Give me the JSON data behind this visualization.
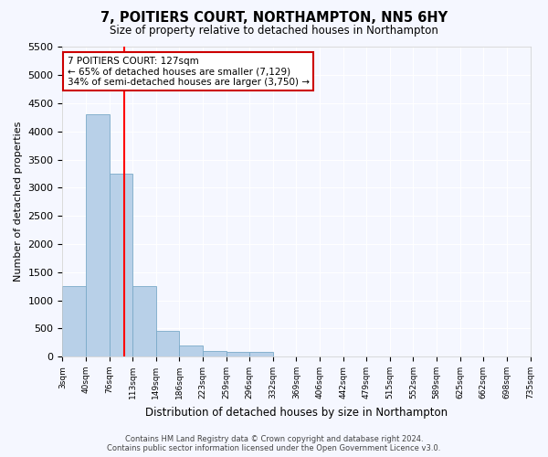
{
  "title": "7, POITIERS COURT, NORTHAMPTON, NN5 6HY",
  "subtitle": "Size of property relative to detached houses in Northampton",
  "xlabel": "Distribution of detached houses by size in Northampton",
  "ylabel": "Number of detached properties",
  "bar_color": "#b8d0e8",
  "bar_edge_color": "#7aaac8",
  "bar_values": [
    1250,
    4300,
    3250,
    1250,
    450,
    200,
    100,
    75,
    75,
    0,
    0,
    0,
    0,
    0,
    0,
    0,
    0,
    0,
    0,
    0
  ],
  "bin_labels": [
    "3sqm",
    "40sqm",
    "76sqm",
    "113sqm",
    "149sqm",
    "186sqm",
    "223sqm",
    "259sqm",
    "296sqm",
    "332sqm",
    "369sqm",
    "406sqm",
    "442sqm",
    "479sqm",
    "515sqm",
    "552sqm",
    "589sqm",
    "625sqm",
    "662sqm",
    "698sqm",
    "735sqm"
  ],
  "red_line_x": 2.65,
  "annotation_title": "7 POITIERS COURT: 127sqm",
  "annotation_line1": "← 65% of detached houses are smaller (7,129)",
  "annotation_line2": "34% of semi-detached houses are larger (3,750) →",
  "annotation_box_color": "#ffffff",
  "annotation_box_edge": "#cc0000",
  "ylim": [
    0,
    5500
  ],
  "yticks": [
    0,
    500,
    1000,
    1500,
    2000,
    2500,
    3000,
    3500,
    4000,
    4500,
    5000,
    5500
  ],
  "footer_line1": "Contains HM Land Registry data © Crown copyright and database right 2024.",
  "footer_line2": "Contains public sector information licensed under the Open Government Licence v3.0.",
  "background_color": "#f5f7ff",
  "plot_bg_color": "#f5f7ff",
  "grid_color": "#ffffff"
}
